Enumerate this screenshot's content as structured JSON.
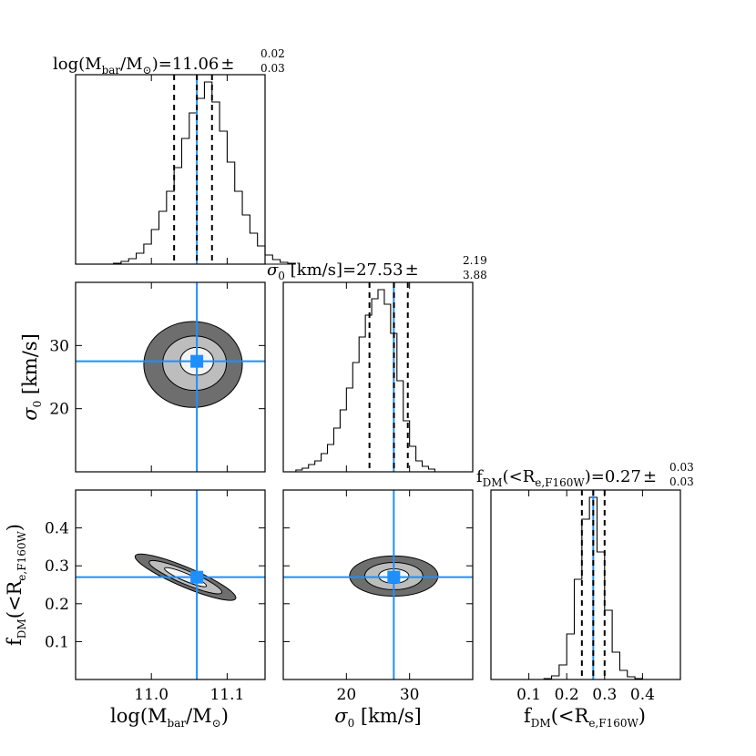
{
  "colors": {
    "truth": "#1e8fff",
    "contour_outer": "#6e6e6e",
    "contour_mid": "#bdbdbd",
    "contour_inner": "#f4f4f4",
    "hist": "#000000"
  },
  "titles": {
    "mbar": {
      "pre": "log(M",
      "sub": "bar",
      "mid": "/M",
      "sun": "⊙",
      "post": ")=11.06",
      "pm": "±",
      "upper": "0.02",
      "lower": "0.03"
    },
    "sigma": {
      "pre": "σ",
      "sub": "0",
      "post": " [km/s]=27.53",
      "pm": "±",
      "upper": "2.19",
      "lower": "3.88"
    },
    "fdm": {
      "pre": "f",
      "sub": "DM",
      "mid": "(<R",
      "sub2": "e,F160W",
      "post": ")=0.27",
      "pm": "±",
      "upper": "0.03",
      "lower": "0.03"
    }
  },
  "axis_labels": {
    "x_mbar": {
      "pre": "log(M",
      "sub": "bar",
      "mid": "/M",
      "sun": "⊙",
      "post": ")"
    },
    "x_sigma": {
      "pre": "σ",
      "sub": "0",
      "post": " [km/s]"
    },
    "x_fdm": {
      "pre": "f",
      "sub": "DM",
      "mid": "(<R",
      "sub2": "e,F160W",
      "post": ")"
    },
    "y_sigma": {
      "pre": "σ",
      "sub": "0",
      "post": " [km/s]"
    },
    "y_fdm": {
      "pre": "f",
      "sub": "DM",
      "mid": "(<R",
      "sub2": "e,F160W",
      "post": ")"
    }
  },
  "chart_data": [
    {
      "type": "histogram",
      "panel": "hist-mbar",
      "xlim": [
        10.9,
        11.15
      ],
      "bin_width": 0.01,
      "bins_start": 10.95,
      "counts": [
        0.5,
        1.5,
        3,
        6,
        11,
        19,
        29,
        40,
        53,
        69,
        83,
        91,
        100,
        89,
        73,
        56,
        40,
        27,
        17,
        10,
        5,
        2.5,
        1,
        0.5
      ],
      "median": 11.06,
      "quantiles": [
        11.03,
        11.06,
        11.08
      ],
      "truth": 11.06,
      "title": "log(M_bar/M_sun)=11.06 +0.02 -0.03"
    },
    {
      "type": "histogram",
      "panel": "hist-sigma",
      "xlim": [
        10,
        40
      ],
      "bin_width": 1,
      "bins_start": 12,
      "counts": [
        1,
        2,
        4,
        6,
        10,
        15,
        24,
        34,
        46,
        60,
        74,
        86,
        95,
        100,
        92,
        76,
        50,
        28,
        14,
        6,
        3,
        1.5
      ],
      "quantiles": [
        23.65,
        27.53,
        29.72
      ],
      "truth": 27.5,
      "title": "sigma_0 [km/s]=27.53 +2.19 -3.88"
    },
    {
      "type": "histogram",
      "panel": "hist-fdm",
      "xlim": [
        0.0,
        0.5
      ],
      "bin_width": 0.02,
      "bins_start": 0.14,
      "counts": [
        0.5,
        2,
        8,
        25,
        55,
        88,
        100,
        70,
        38,
        15,
        5,
        1.5,
        0.5
      ],
      "quantiles": [
        0.24,
        0.27,
        0.3
      ],
      "truth": 0.27,
      "title": "f_DM(<R_e,F160W)=0.27 +0.03 -0.03"
    },
    {
      "type": "contour",
      "panel": "contour-mbar-sigma",
      "xlim": [
        10.9,
        11.15
      ],
      "ylim": [
        10,
        40
      ],
      "levels": [
        {
          "cx": 11.055,
          "cy": 27.0,
          "rx": 0.065,
          "ry": 6.8,
          "angle": 0
        },
        {
          "cx": 11.057,
          "cy": 27.2,
          "rx": 0.042,
          "ry": 4.3,
          "angle": 0
        },
        {
          "cx": 11.06,
          "cy": 27.5,
          "rx": 0.022,
          "ry": 2.2,
          "angle": 0
        }
      ],
      "truth": {
        "x": 11.06,
        "y": 27.5
      }
    },
    {
      "type": "contour",
      "panel": "contour-mbar-fdm",
      "xlim": [
        10.9,
        11.15
      ],
      "ylim": [
        0.0,
        0.5
      ],
      "levels": [
        {
          "cx": 11.045,
          "cy": 0.27,
          "rx": 0.072,
          "ry": 0.026,
          "angle": 23
        },
        {
          "cx": 11.045,
          "cy": 0.27,
          "rx": 0.052,
          "ry": 0.018,
          "angle": 23
        },
        {
          "cx": 11.045,
          "cy": 0.27,
          "rx": 0.03,
          "ry": 0.01,
          "angle": 23
        }
      ],
      "truth": {
        "x": 11.06,
        "y": 0.27
      }
    },
    {
      "type": "contour",
      "panel": "contour-sigma-fdm",
      "xlim": [
        10,
        40
      ],
      "ylim": [
        0.0,
        0.5
      ],
      "levels": [
        {
          "cx": 27.5,
          "cy": 0.273,
          "rx": 7.0,
          "ry": 0.053,
          "angle": 0
        },
        {
          "cx": 27.5,
          "cy": 0.273,
          "rx": 4.6,
          "ry": 0.036,
          "angle": 0
        },
        {
          "cx": 27.5,
          "cy": 0.273,
          "rx": 2.4,
          "ry": 0.019,
          "angle": 0
        }
      ],
      "truth": {
        "x": 27.5,
        "y": 0.27
      }
    }
  ],
  "ticks": {
    "mbar": [
      "11.0",
      "11.1"
    ],
    "mbar_values": [
      11.0,
      11.1
    ],
    "sigma": [
      "20",
      "30"
    ],
    "sigma_values": [
      20,
      30
    ],
    "fdm_y": [
      "0.1",
      "0.2",
      "0.3",
      "0.4"
    ],
    "fdm_y_values": [
      0.1,
      0.2,
      0.3,
      0.4
    ],
    "fdm_x": [
      "0.1",
      "0.2",
      "0.3",
      "0.4"
    ],
    "fdm_x_values": [
      0.1,
      0.2,
      0.3,
      0.4
    ]
  }
}
